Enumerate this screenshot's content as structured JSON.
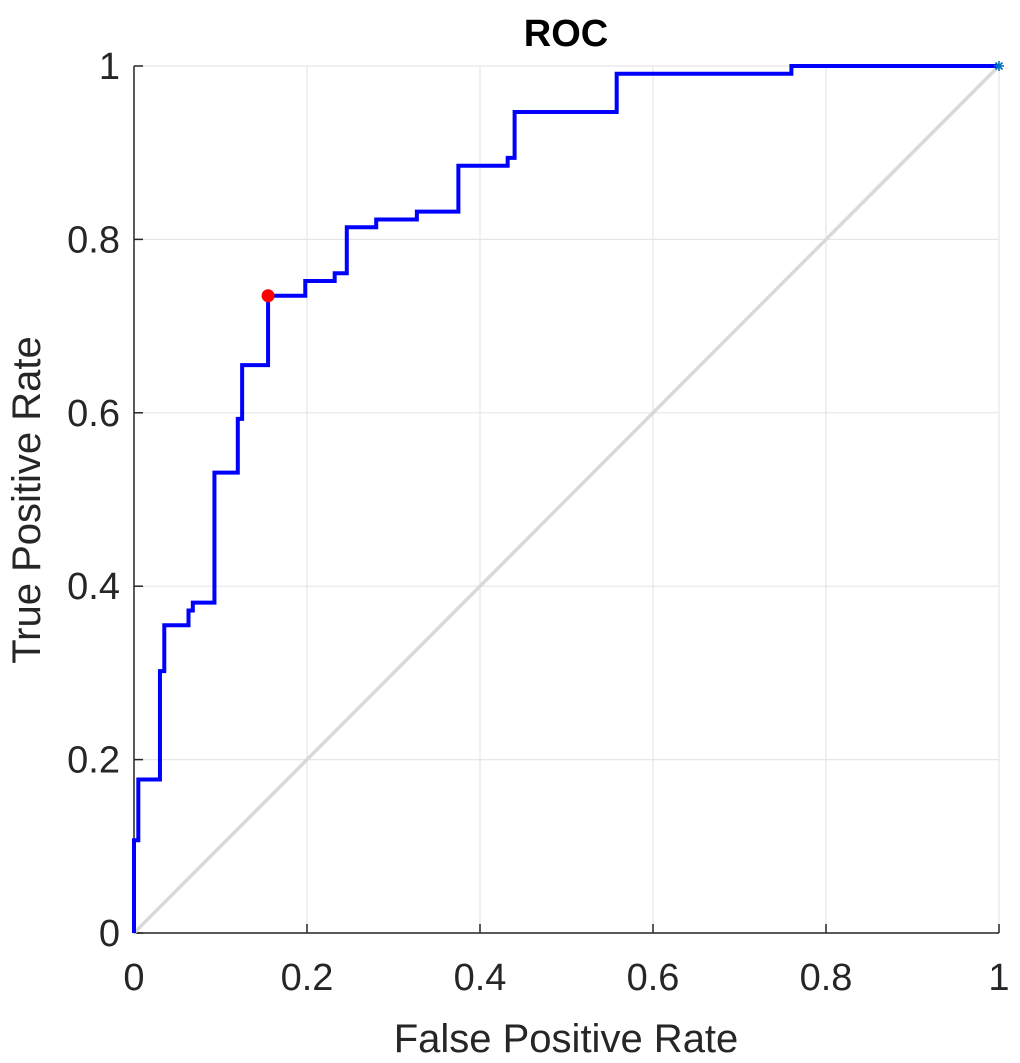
{
  "chart_data": {
    "type": "line",
    "title": "ROC",
    "xlabel": "False Positive Rate",
    "ylabel": "True Positive Rate",
    "xlim": [
      0,
      1
    ],
    "ylim": [
      0,
      1
    ],
    "xticks": [
      0,
      0.2,
      0.4,
      0.6,
      0.8,
      1
    ],
    "yticks": [
      0,
      0.2,
      0.4,
      0.6,
      0.8,
      1
    ],
    "xtick_labels": [
      "0",
      "0.2",
      "0.4",
      "0.6",
      "0.8",
      "1"
    ],
    "ytick_labels": [
      "0",
      "0.2",
      "0.4",
      "0.6",
      "0.8",
      "1"
    ],
    "grid": true,
    "series": [
      {
        "color": "#0000ff",
        "style": "step",
        "x": [
          0,
          0,
          0.005,
          0.005,
          0.03,
          0.03,
          0.035,
          0.035,
          0.063,
          0.063,
          0.068,
          0.068,
          0.093,
          0.093,
          0.12,
          0.12,
          0.125,
          0.125,
          0.155,
          0.155,
          0.198,
          0.198,
          0.232,
          0.232,
          0.246,
          0.246,
          0.28,
          0.28,
          0.327,
          0.327,
          0.375,
          0.375,
          0.432,
          0.432,
          0.44,
          0.44,
          0.558,
          0.558,
          0.76,
          0.76,
          1.0
        ],
        "y": [
          0,
          0.107,
          0.107,
          0.177,
          0.177,
          0.302,
          0.302,
          0.355,
          0.355,
          0.372,
          0.372,
          0.381,
          0.381,
          0.531,
          0.531,
          0.593,
          0.593,
          0.655,
          0.655,
          0.735,
          0.735,
          0.752,
          0.752,
          0.761,
          0.761,
          0.814,
          0.814,
          0.823,
          0.823,
          0.832,
          0.832,
          0.885,
          0.885,
          0.894,
          0.894,
          0.947,
          0.947,
          0.991,
          0.991,
          1.0,
          1.0
        ]
      },
      {
        "color": "#d9d9d9",
        "style": "line",
        "x": [
          0,
          1
        ],
        "y": [
          0,
          1
        ]
      }
    ],
    "markers": [
      {
        "x": 0.155,
        "y": 0.735,
        "color": "#ff0000",
        "shape": "circle"
      },
      {
        "x": 1.0,
        "y": 1.0,
        "color": "#0072bd",
        "shape": "asterisk"
      }
    ]
  }
}
